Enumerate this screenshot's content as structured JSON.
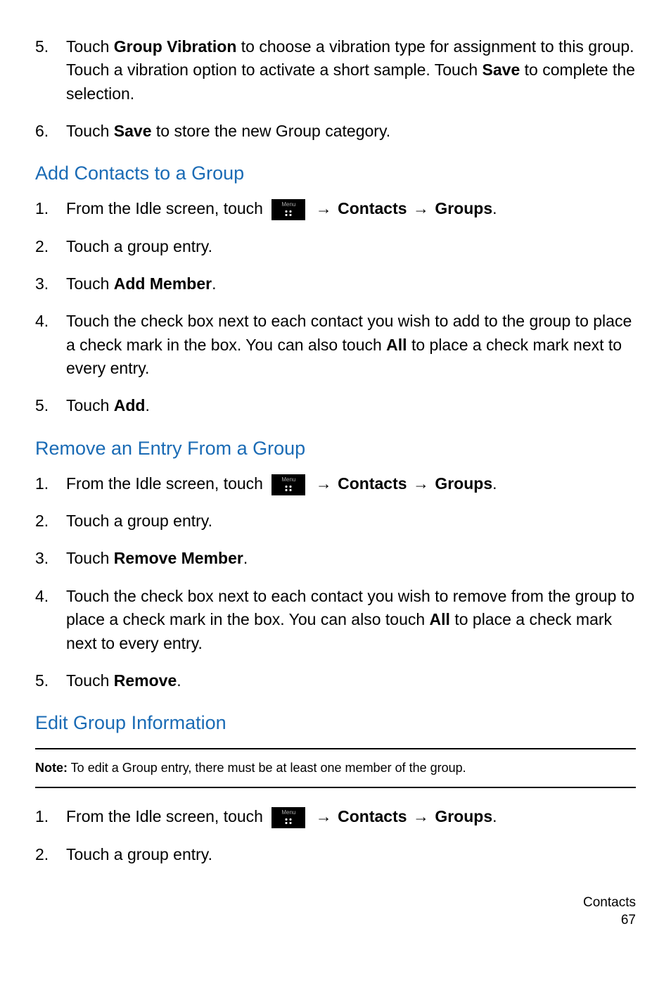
{
  "top_steps": [
    {
      "num": "5.",
      "parts": [
        {
          "t": "Touch "
        },
        {
          "t": "Group Vibration",
          "b": true
        },
        {
          "t": " to choose a vibration type for assignment to this group. Touch a vibration option to activate a short sample. Touch "
        },
        {
          "t": "Save",
          "b": true
        },
        {
          "t": " to complete the selection."
        }
      ]
    },
    {
      "num": "6.",
      "parts": [
        {
          "t": "Touch "
        },
        {
          "t": "Save",
          "b": true
        },
        {
          "t": " to store the new Group category."
        }
      ]
    }
  ],
  "section1": {
    "heading": "Add Contacts to a Group",
    "steps": [
      {
        "num": "1.",
        "type": "nav",
        "prefix": "From the Idle screen, touch ",
        "path": [
          " Contacts ",
          " Groups"
        ],
        "suffix": "."
      },
      {
        "num": "2.",
        "parts": [
          {
            "t": "Touch a group entry."
          }
        ]
      },
      {
        "num": "3.",
        "parts": [
          {
            "t": "Touch "
          },
          {
            "t": "Add Member",
            "b": true
          },
          {
            "t": "."
          }
        ]
      },
      {
        "num": "4.",
        "parts": [
          {
            "t": " Touch the check box next to each contact you wish to add to the group to place a check mark in the box. You can also touch "
          },
          {
            "t": "All",
            "b": true
          },
          {
            "t": " to place a check mark next to every entry."
          }
        ]
      },
      {
        "num": "5.",
        "parts": [
          {
            "t": "Touch "
          },
          {
            "t": "Add",
            "b": true
          },
          {
            "t": "."
          }
        ]
      }
    ]
  },
  "section2": {
    "heading": "Remove an Entry From a Group",
    "steps": [
      {
        "num": "1.",
        "type": "nav",
        "prefix": "From the Idle screen, touch ",
        "path": [
          " Contacts ",
          " Groups"
        ],
        "suffix": "."
      },
      {
        "num": "2.",
        "parts": [
          {
            "t": "Touch a group entry."
          }
        ]
      },
      {
        "num": "3.",
        "parts": [
          {
            "t": "Touch "
          },
          {
            "t": "Remove Member",
            "b": true
          },
          {
            "t": "."
          }
        ]
      },
      {
        "num": "4.",
        "parts": [
          {
            "t": " Touch the check box next to each contact you wish to remove from the group to place a check mark in the box. You can also touch "
          },
          {
            "t": "All",
            "b": true
          },
          {
            "t": " to place a check mark next to every entry."
          }
        ]
      },
      {
        "num": "5.",
        "parts": [
          {
            "t": "Touch "
          },
          {
            "t": "Remove",
            "b": true
          },
          {
            "t": "."
          }
        ]
      }
    ]
  },
  "section3": {
    "heading": "Edit Group Information",
    "note": {
      "label": "Note:",
      "text": " To edit a Group entry, there must be at least one member of the group."
    },
    "steps": [
      {
        "num": "1.",
        "type": "nav",
        "prefix": "From the Idle screen, touch ",
        "path": [
          " Contacts ",
          " Groups"
        ],
        "suffix": "."
      },
      {
        "num": "2.",
        "parts": [
          {
            "t": "Touch a group entry."
          }
        ]
      }
    ]
  },
  "footer": {
    "section": "Contacts",
    "page": "67"
  }
}
